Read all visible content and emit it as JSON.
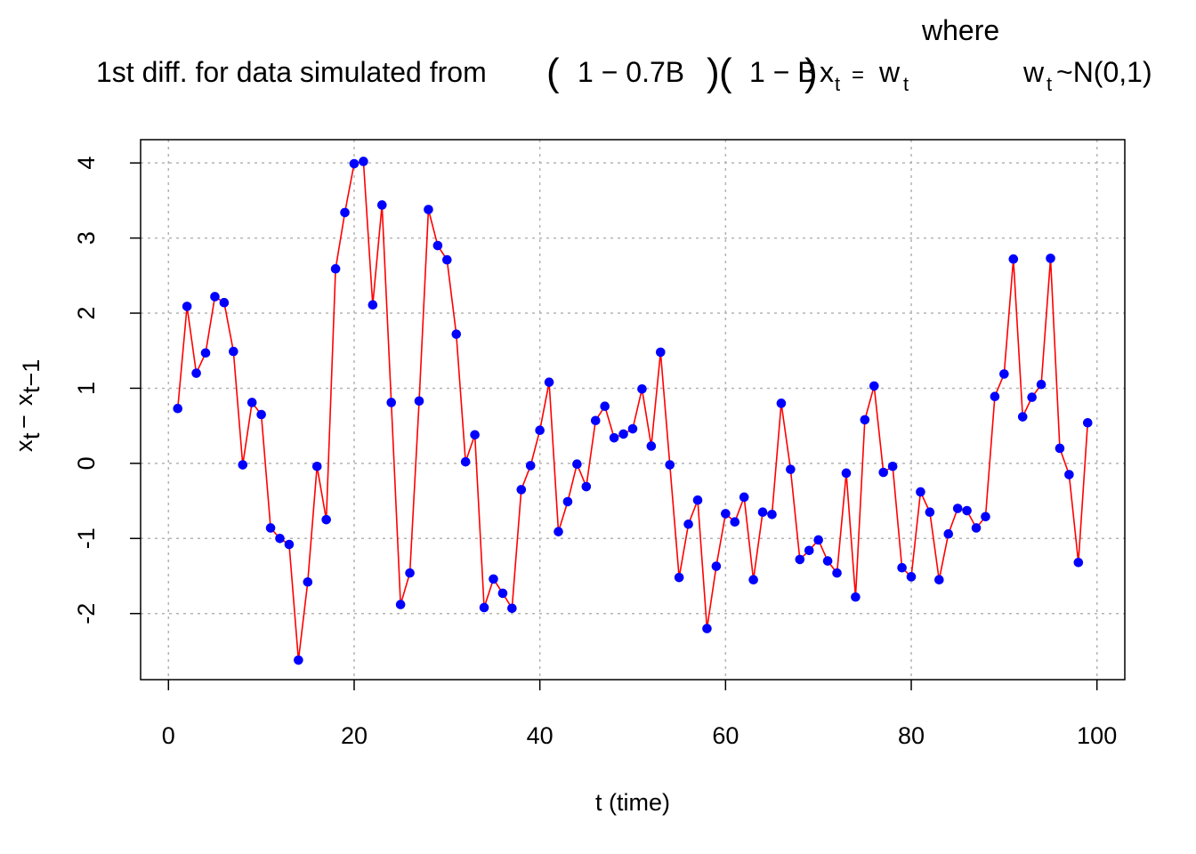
{
  "title": {
    "prefix": "1st diff. for data simulated from",
    "factor1_open": "(",
    "factor1_body": "1 − 0.7B",
    "factor1_close": ")",
    "factor2_open": "(",
    "factor2_body": "1 − B",
    "factor2_close": ")",
    "lhs_var": "x",
    "lhs_sub": "t",
    "equals": "=",
    "rhs_var": "w",
    "rhs_sub": "t",
    "where": "where",
    "noise_var": "w",
    "noise_sub": "t",
    "noise_dist": "~N(0,1)"
  },
  "chart_data": {
    "type": "line",
    "xlabel": "t (time)",
    "ylabel": {
      "var1": "x",
      "sub1": "t",
      "minus": "−",
      "var2": "x",
      "sub2": "t−1"
    },
    "xlim": [
      -3.0,
      103.0
    ],
    "ylim": [
      -2.88,
      4.31
    ],
    "x_ticks": [
      0,
      20,
      40,
      60,
      80,
      100
    ],
    "y_ticks": [
      -2,
      -1,
      0,
      1,
      2,
      3,
      4
    ],
    "y_tick_labels": [
      "-2",
      "-1",
      "0",
      "1",
      "2",
      "3",
      "4"
    ],
    "x_tick_labels": [
      "0",
      "20",
      "40",
      "60",
      "80",
      "100"
    ],
    "grid": true,
    "line_color": "#ff0000",
    "point_color": "#0000ff",
    "x": [
      1,
      2,
      3,
      4,
      5,
      6,
      7,
      8,
      9,
      10,
      11,
      12,
      13,
      14,
      15,
      16,
      17,
      18,
      19,
      20,
      21,
      22,
      23,
      24,
      25,
      26,
      27,
      28,
      29,
      30,
      31,
      32,
      33,
      34,
      35,
      36,
      37,
      38,
      39,
      40,
      41,
      42,
      43,
      44,
      45,
      46,
      47,
      48,
      49,
      50,
      51,
      52,
      53,
      54,
      55,
      56,
      57,
      58,
      59,
      60,
      61,
      62,
      63,
      64,
      65,
      66,
      67,
      68,
      69,
      70,
      71,
      72,
      73,
      74,
      75,
      76,
      77,
      78,
      79,
      80,
      81,
      82,
      83,
      84,
      85,
      86,
      87,
      88,
      89,
      90,
      91,
      92,
      93,
      94,
      95,
      96,
      97,
      98,
      99
    ],
    "y": [
      0.73,
      2.09,
      1.2,
      1.47,
      2.22,
      2.14,
      1.49,
      -0.02,
      0.81,
      0.65,
      -0.86,
      -1.0,
      -1.08,
      -2.62,
      -1.58,
      -0.04,
      -0.75,
      2.59,
      3.34,
      3.99,
      4.02,
      2.11,
      3.44,
      0.81,
      -1.88,
      -1.46,
      0.83,
      3.38,
      2.9,
      2.71,
      1.72,
      0.02,
      0.38,
      -1.92,
      -1.54,
      -1.73,
      -1.93,
      -0.35,
      -0.03,
      0.44,
      1.08,
      -0.91,
      -0.51,
      -0.01,
      -0.31,
      0.57,
      0.76,
      0.34,
      0.39,
      0.46,
      0.99,
      0.23,
      1.48,
      -0.02,
      -1.52,
      -0.81,
      -0.49,
      -2.2,
      -1.37,
      -0.67,
      -0.78,
      -0.45,
      -1.55,
      -0.65,
      -0.68,
      0.8,
      -0.08,
      -1.28,
      -1.16,
      -1.02,
      -1.3,
      -1.46,
      -0.13,
      -1.78,
      0.58,
      1.03,
      -0.12,
      -0.04,
      -1.39,
      -1.51,
      -0.38,
      -0.65,
      -1.55,
      -0.94,
      -0.6,
      -0.63,
      -0.86,
      -0.71,
      0.89,
      1.19,
      2.72,
      0.62,
      0.88,
      1.05,
      2.73,
      0.2,
      -0.15,
      -1.32,
      0.54
    ]
  }
}
